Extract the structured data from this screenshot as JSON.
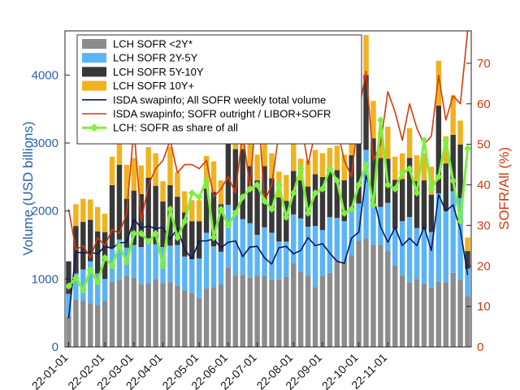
{
  "chart_data": {
    "type": "bar",
    "stacked": true,
    "ylabel_left": "Volume (USD billions)",
    "ylabel_right": "SOFR/All (%)",
    "ylim_left": [
      0,
      4650
    ],
    "ylim_right": [
      0,
      78
    ],
    "yticks_left": [
      0,
      1000,
      2000,
      3000,
      4000
    ],
    "yticks_right": [
      0,
      10,
      20,
      30,
      40,
      50,
      60,
      70
    ],
    "xtick_labels": [
      "22-01-01",
      "22-02-01",
      "22-03-01",
      "22-04-01",
      "22-05-01",
      "22-06-01",
      "22-07-01",
      "22-08-01",
      "22-09-01",
      "22-10-01",
      "22-11-01"
    ],
    "xtick_week_index": [
      0,
      5,
      9,
      13,
      18,
      22,
      26,
      31,
      35,
      40,
      44
    ],
    "legend_position": "top-center",
    "colors": {
      "lt2y": "#8c8c8c",
      "y2to5": "#5ab4f5",
      "y5to10": "#383838",
      "y10plus": "#f0b21e",
      "isda_total": "#0a1760",
      "isda_share": "#d23c0c",
      "lch_share": "#7df03c"
    },
    "bar_series": [
      {
        "key": "lt2y",
        "name": "LCH SOFR <2Y*",
        "values": [
          450,
          700,
          680,
          640,
          620,
          680,
          960,
          980,
          1040,
          1020,
          920,
          940,
          1000,
          940,
          950,
          900,
          830,
          790,
          720,
          860,
          880,
          920,
          1170,
          1050,
          1060,
          1020,
          1050,
          1040,
          990,
          990,
          1030,
          1230,
          1110,
          1050,
          880,
          1040,
          1090,
          1280,
          1250,
          1350,
          1560,
          1600,
          1500,
          1500,
          1410,
          1200,
          1050,
          950,
          1000,
          930,
          870,
          960,
          950,
          1090,
          990,
          750
        ]
      },
      {
        "key": "y2to5",
        "name": "LCH SOFR 2Y-5Y",
        "values": [
          330,
          380,
          460,
          620,
          460,
          320,
          500,
          600,
          420,
          480,
          550,
          580,
          510,
          530,
          540,
          600,
          500,
          500,
          580,
          820,
          600,
          480,
          920,
          960,
          820,
          800,
          600,
          720,
          690,
          560,
          520,
          720,
          780,
          720,
          900,
          680,
          820,
          620,
          600,
          680,
          550,
          1300,
          650,
          560,
          710,
          540,
          800,
          960,
          750,
          800,
          820,
          1300,
          1050,
          1200,
          1200,
          400
        ]
      },
      {
        "key": "y5to10",
        "name": "LCH SOFR 5Y-10Y",
        "values": [
          480,
          700,
          700,
          610,
          620,
          690,
          920,
          1100,
          720,
          800,
          780,
          970,
          860,
          670,
          890,
          710,
          650,
          560,
          550,
          650,
          800,
          700,
          1130,
          900,
          1030,
          840,
          800,
          900,
          800,
          650,
          600,
          640,
          560,
          590,
          760,
          780,
          700,
          700,
          600,
          790,
          1000,
          1100,
          920,
          720,
          650,
          720,
          620,
          870,
          690,
          720,
          550,
          1290,
          700,
          830,
          790,
          260
        ]
      },
      {
        "key": "y10plus",
        "name": "LCH SOFR 10Y+",
        "values": [
          0,
          320,
          340,
          300,
          360,
          270,
          420,
          500,
          500,
          480,
          420,
          450,
          480,
          300,
          560,
          360,
          310,
          310,
          310,
          480,
          450,
          350,
          380,
          380,
          420,
          370,
          380,
          560,
          370,
          380,
          380,
          420,
          320,
          380,
          360,
          350,
          320,
          360,
          380,
          560,
          480,
          590,
          550,
          380,
          470,
          340,
          380,
          440,
          380,
          400,
          410,
          660,
          400,
          580,
          350,
          200
        ]
      }
    ],
    "line_series": [
      {
        "key": "isda_total",
        "name": "ISDA swapinfo; All SOFR weekly total volume",
        "axis": "left",
        "values": [
          420,
          1400,
          1380,
          1390,
          1370,
          1480,
          1450,
          1530,
          1540,
          1880,
          1750,
          1780,
          1740,
          1760,
          1580,
          1750,
          1430,
          1300,
          1560,
          1560,
          1590,
          1460,
          1540,
          1560,
          1330,
          1470,
          1480,
          1310,
          1220,
          1460,
          1480,
          1370,
          1420,
          1610,
          1490,
          1520,
          1380,
          1260,
          1230,
          1600,
          1690,
          2520,
          2220,
          1770,
          1540,
          1760,
          1490,
          1600,
          1490,
          1770,
          1420,
          2240,
          2000,
          2090,
          1720,
          1060
        ]
      },
      {
        "key": "isda_share",
        "name": "ISDA swapinfo; SOFR outright / LIBOR+SOFR",
        "axis": "right",
        "values": [
          34,
          24,
          25,
          22,
          27,
          25,
          29,
          28,
          33,
          54,
          31,
          40,
          44,
          46,
          51,
          43,
          45,
          45,
          44,
          46,
          37,
          39,
          42,
          38,
          53,
          39,
          62,
          36,
          40,
          53,
          53,
          55,
          56,
          45,
          53,
          56,
          62,
          54,
          46,
          42,
          58,
          68,
          46,
          50,
          63,
          58,
          51,
          60,
          54,
          50,
          52,
          67,
          56,
          62,
          60,
          78
        ]
      },
      {
        "key": "lch_share",
        "name": "LCH: SOFR as share of all",
        "axis": "right",
        "values": [
          15,
          17,
          14,
          19,
          16,
          22,
          20,
          25,
          21,
          28,
          28,
          26,
          28,
          20,
          34,
          27,
          31,
          38,
          37,
          41,
          27,
          34,
          30,
          33,
          37,
          39,
          40,
          36,
          34,
          40,
          32,
          38,
          44,
          33,
          38,
          39,
          44,
          41,
          33,
          34,
          40,
          45,
          35,
          56,
          40,
          39,
          43,
          44,
          38,
          51,
          39,
          42,
          51,
          41,
          31,
          49
        ]
      }
    ]
  }
}
